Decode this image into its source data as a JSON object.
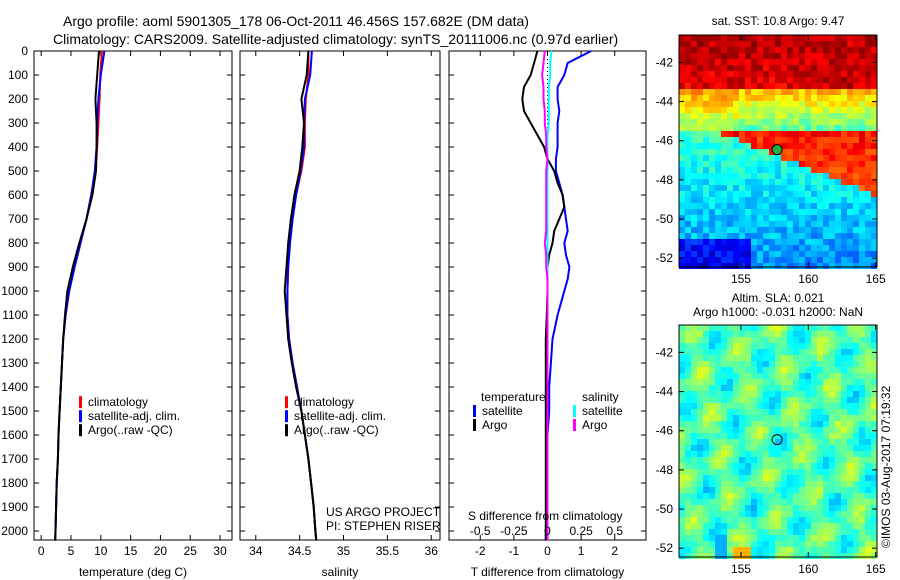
{
  "title_line1": "Argo profile: aoml 5901305_178 06-Oct-2011 46.456S 157.682E (DM data)",
  "title_line2": "Climatology: CARS2009. Satellite-adjusted climatology: synTS_20111006.nc (0.97d earlier)",
  "credit": "©IMOS 03-Aug-2017 07:19:32",
  "colors": {
    "climatology": "#ff0000",
    "satellite": "#0000ff",
    "argo": "#000000",
    "s_satellite": "#00ffff",
    "s_argo": "#ff00ff"
  },
  "chart_data": [
    {
      "type": "line",
      "name": "temperature",
      "xlabel": "temperature (deg C)",
      "xlim": [
        -1.2,
        32
      ],
      "ylim": [
        2040,
        0
      ],
      "xticks": [
        "0",
        "5",
        "10",
        "15",
        "20",
        "25",
        "30"
      ],
      "xtick_values": [
        0,
        5,
        10,
        15,
        20,
        25,
        30
      ],
      "yticks": [
        "0",
        "100",
        "200",
        "300",
        "400",
        "500",
        "600",
        "700",
        "800",
        "900",
        "1000",
        "1100",
        "1200",
        "1300",
        "1400",
        "1500",
        "1600",
        "1700",
        "1800",
        "1900",
        "2000"
      ],
      "depth": [
        0,
        100,
        200,
        300,
        400,
        500,
        600,
        700,
        800,
        900,
        1000,
        1100,
        1200,
        1300,
        1400,
        1500,
        1600,
        1700,
        1800,
        1900,
        2000,
        2040
      ],
      "legend": [
        "climatology",
        "satellite-adj. clim.",
        "Argo(..raw -QC)"
      ],
      "series": [
        {
          "name": "climatology",
          "values": [
            10.2,
            9.9,
            9.8,
            9.6,
            9.4,
            9.1,
            8.4,
            7.6,
            6.6,
            5.6,
            4.7,
            4.1,
            3.7,
            3.5,
            3.3,
            3.1,
            2.9,
            2.8,
            2.6,
            2.5,
            2.4,
            2.35
          ]
        },
        {
          "name": "satellite-adj. clim.",
          "values": [
            10.6,
            10.0,
            9.6,
            9.4,
            9.3,
            9.0,
            8.4,
            7.6,
            6.6,
            5.6,
            4.7,
            4.1,
            3.7,
            3.5,
            3.3,
            3.1,
            2.9,
            2.8,
            2.6,
            2.5,
            2.4,
            2.35
          ]
        },
        {
          "name": "Argo",
          "values": [
            9.7,
            9.4,
            9.1,
            9.3,
            9.3,
            9.2,
            8.6,
            7.6,
            6.4,
            5.3,
            4.4,
            4.0,
            3.7,
            3.5,
            3.3,
            3.1,
            2.9,
            2.8,
            2.6,
            2.5,
            2.4,
            2.35
          ]
        }
      ]
    },
    {
      "type": "line",
      "name": "salinity",
      "xlabel": "salinity",
      "xlim": [
        33.82,
        36.1
      ],
      "ylim": [
        2040,
        0
      ],
      "xticks": [
        "34",
        "34.5",
        "35",
        "35.5",
        "36"
      ],
      "xtick_values": [
        34,
        34.5,
        35,
        35.5,
        36
      ],
      "depth": [
        0,
        100,
        200,
        300,
        400,
        500,
        600,
        700,
        800,
        900,
        1000,
        1100,
        1200,
        1300,
        1400,
        1500,
        1600,
        1700,
        1800,
        1900,
        2000,
        2040
      ],
      "legend": [
        "climatology",
        "satellite-adj. clim.",
        "Argo(..raw -QC)"
      ],
      "annotation": [
        "US ARGO PROJECT",
        "PI: STEPHEN RISER"
      ],
      "series": [
        {
          "name": "climatology",
          "values": [
            34.6,
            34.6,
            34.57,
            34.56,
            34.56,
            34.52,
            34.46,
            34.42,
            34.39,
            34.37,
            34.36,
            34.36,
            34.38,
            34.42,
            34.47,
            34.52,
            34.56,
            34.6,
            34.63,
            34.66,
            34.68,
            34.69
          ]
        },
        {
          "name": "satellite-adj. clim.",
          "values": [
            34.64,
            34.62,
            34.56,
            34.55,
            34.55,
            34.51,
            34.46,
            34.42,
            34.39,
            34.37,
            34.36,
            34.36,
            34.38,
            34.42,
            34.47,
            34.52,
            34.56,
            34.6,
            34.63,
            34.66,
            34.68,
            34.69
          ]
        },
        {
          "name": "Argo",
          "values": [
            34.6,
            34.58,
            34.52,
            34.55,
            34.53,
            34.5,
            34.44,
            34.4,
            34.37,
            34.35,
            34.33,
            34.35,
            34.37,
            34.41,
            34.46,
            34.52,
            34.56,
            34.6,
            34.63,
            34.66,
            34.68,
            34.69
          ]
        }
      ]
    },
    {
      "type": "line",
      "name": "difference",
      "xlabel": "T difference from climatology",
      "xlabel2": "S difference from climatology",
      "xlim": [
        -2.93,
        2.93
      ],
      "ylim": [
        2040,
        0
      ],
      "xticks": [
        "-2",
        "-1",
        "0",
        "1",
        "2"
      ],
      "xtick_values": [
        -2,
        -1,
        0,
        1,
        2
      ],
      "xticks2": [
        "-0.5",
        "-0.25",
        "0",
        "0.25",
        "0.5"
      ],
      "xtick2_values": [
        -0.5,
        -0.25,
        0,
        0.25,
        0.5
      ],
      "s_scale": 4,
      "depth": [
        0,
        50,
        100,
        150,
        200,
        250,
        300,
        350,
        400,
        450,
        500,
        550,
        600,
        650,
        700,
        750,
        800,
        850,
        900,
        950,
        1000,
        1100,
        1200,
        1300,
        1400,
        1500,
        1600,
        1700,
        1800,
        1900,
        2000,
        2040
      ],
      "legend_headers": [
        "temperature",
        "salinity"
      ],
      "legend": [
        "satellite",
        "Argo",
        "satellite",
        "Argo"
      ],
      "series": [
        {
          "name": "T satellite",
          "values": [
            1.3,
            0.6,
            0.5,
            0.3,
            0.3,
            0.35,
            0.3,
            0.3,
            0.3,
            0.25,
            0.25,
            0.35,
            0.45,
            0.5,
            0.55,
            0.6,
            0.5,
            0.55,
            0.65,
            0.6,
            0.5,
            0.3,
            0.15,
            0.1,
            0.05,
            0.05,
            0.0,
            0.0,
            -0.02,
            -0.03,
            -0.05,
            -0.05
          ]
        },
        {
          "name": "T Argo",
          "values": [
            -0.3,
            -0.4,
            -0.5,
            -0.7,
            -0.75,
            -0.7,
            -0.5,
            -0.3,
            -0.1,
            0.0,
            0.2,
            0.3,
            0.45,
            0.5,
            0.35,
            0.2,
            0.15,
            0.05,
            0.0,
            0.0,
            0.0,
            -0.02,
            -0.05,
            -0.05,
            -0.05,
            -0.05,
            -0.05,
            -0.05,
            -0.05,
            -0.05,
            -0.05,
            -0.05
          ]
        },
        {
          "name": "S satellite",
          "values": [
            0.03,
            0.02,
            0.02,
            0.01,
            0.01,
            0.01,
            0.01,
            0.0,
            0.0,
            0.0,
            0.0,
            0.0,
            0.0,
            0.0,
            0.0,
            0.0,
            0.0,
            0.0,
            0.0,
            0.0,
            0.0,
            0.0,
            0.0,
            0.0,
            0.0,
            0.0,
            0.0,
            0.0,
            0.0,
            0.0,
            0.0,
            0.0
          ]
        },
        {
          "name": "S Argo",
          "values": [
            -0.02,
            -0.03,
            -0.04,
            -0.03,
            -0.03,
            -0.02,
            -0.02,
            -0.01,
            -0.01,
            0.0,
            -0.01,
            -0.01,
            -0.01,
            -0.01,
            -0.01,
            -0.01,
            -0.02,
            -0.01,
            -0.01,
            0.0,
            0.0,
            0.0,
            0.0,
            0.0,
            0.0,
            0.0,
            0.0,
            0.0,
            0.0,
            0.0,
            0.0,
            0.0
          ]
        }
      ]
    },
    {
      "type": "heatmap",
      "name": "sst-map",
      "title": "sat. SST: 10.8  Argo: 9.47",
      "xlim": [
        150.4,
        165.1
      ],
      "ylim": [
        -52.45,
        -40.6
      ],
      "xticks": [
        "155",
        "160",
        "165"
      ],
      "xtick_values": [
        155,
        160,
        165
      ],
      "yticks": [
        "-42",
        "-44",
        "-46",
        "-48",
        "-50",
        "-52"
      ],
      "ytick_values": [
        -42,
        -44,
        -46,
        -48,
        -50,
        -52
      ],
      "argo_position": [
        157.682,
        -46.456
      ]
    },
    {
      "type": "heatmap",
      "name": "sla-map",
      "title": "Altim. SLA: 0.021",
      "subtitle": "Argo h1000: -0.031 h2000: NaN",
      "xlim": [
        150.4,
        165.1
      ],
      "ylim": [
        -52.45,
        -40.6
      ],
      "xticks": [
        "155",
        "160",
        "165"
      ],
      "xtick_values": [
        155,
        160,
        165
      ],
      "yticks": [
        "-42",
        "-44",
        "-46",
        "-48",
        "-50",
        "-52"
      ],
      "ytick_values": [
        -42,
        -44,
        -46,
        -48,
        -50,
        -52
      ],
      "argo_position": [
        157.682,
        -46.456
      ]
    }
  ]
}
